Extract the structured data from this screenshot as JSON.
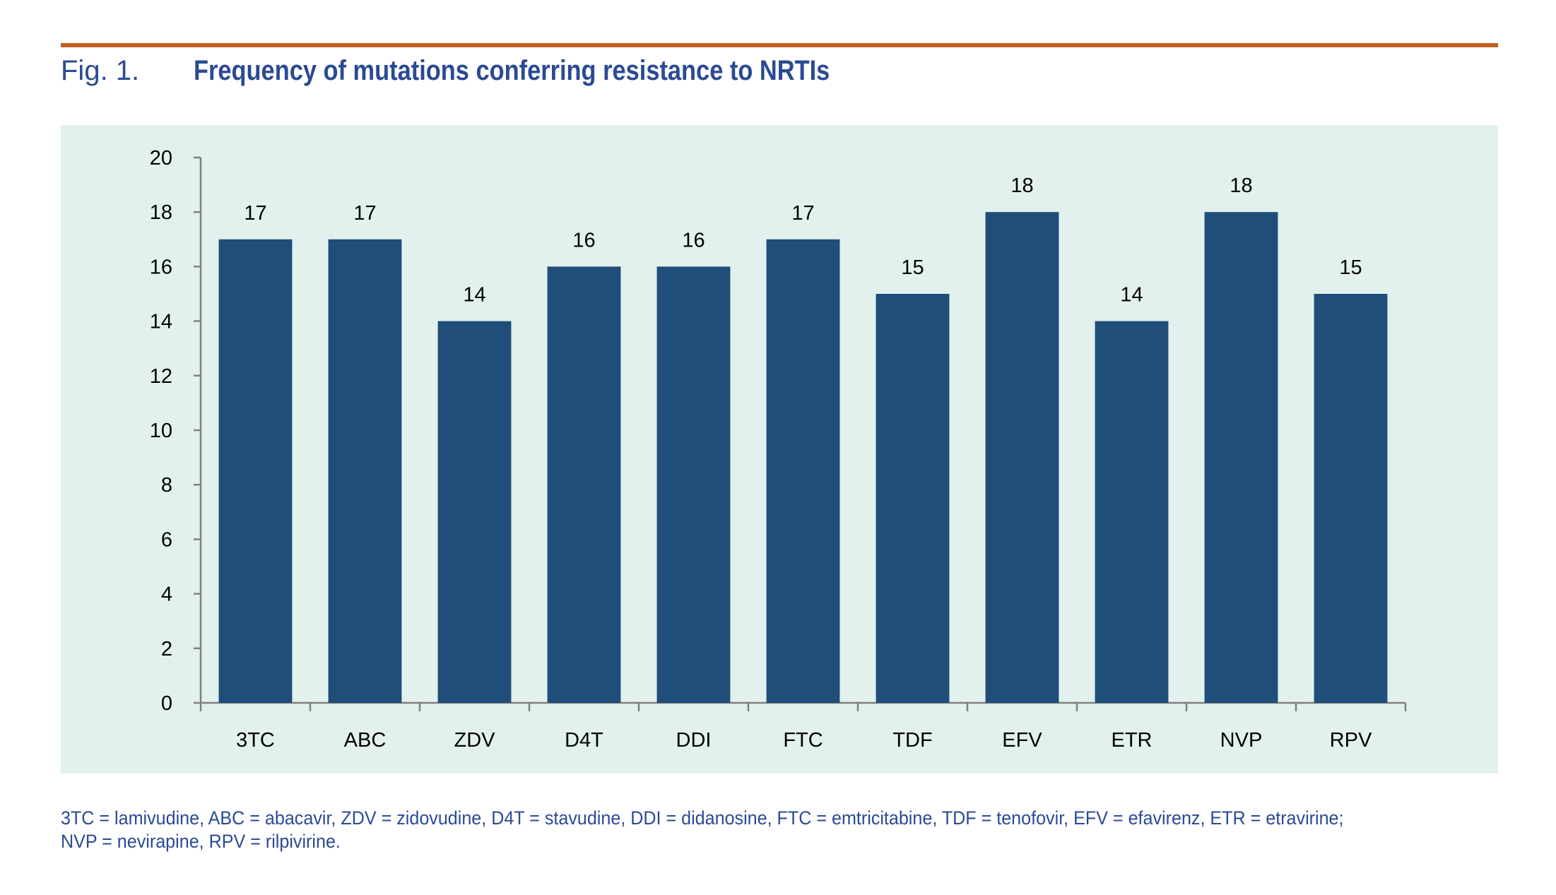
{
  "header": {
    "fig_label": "Fig. 1.",
    "title": "Frequency of mutations conferring resistance to NRTIs"
  },
  "colors": {
    "accent_rule": "#c0621e",
    "title_text": "#2b4a94",
    "panel_bg": "#e3f1ee",
    "bar_fill": "#1f4e79",
    "axis": "#808080"
  },
  "chart_data": {
    "type": "bar",
    "title": "Frequency of mutations conferring resistance to NRTIs",
    "xlabel": "",
    "ylabel": "",
    "categories": [
      "3TC",
      "ABC",
      "ZDV",
      "D4T",
      "DDI",
      "FTC",
      "TDF",
      "EFV",
      "ETR",
      "NVP",
      "RPV"
    ],
    "values": [
      17,
      17,
      14,
      16,
      16,
      17,
      15,
      18,
      14,
      18,
      15
    ],
    "ylim": [
      0,
      20
    ],
    "yticks": [
      0,
      2,
      4,
      6,
      8,
      10,
      12,
      14,
      16,
      18,
      20
    ],
    "data_labels": true,
    "grid": false,
    "legend": "none"
  },
  "footnote": {
    "line1": "3TC = lamivudine, ABC = abacavir, ZDV = zidovudine, D4T = stavudine, DDI = didanosine, FTC = emtricitabine, TDF = tenofovir, EFV = efavirenz, ETR = etravirine;",
    "line2": "NVP = nevirapine, RPV = rilpivirine."
  }
}
